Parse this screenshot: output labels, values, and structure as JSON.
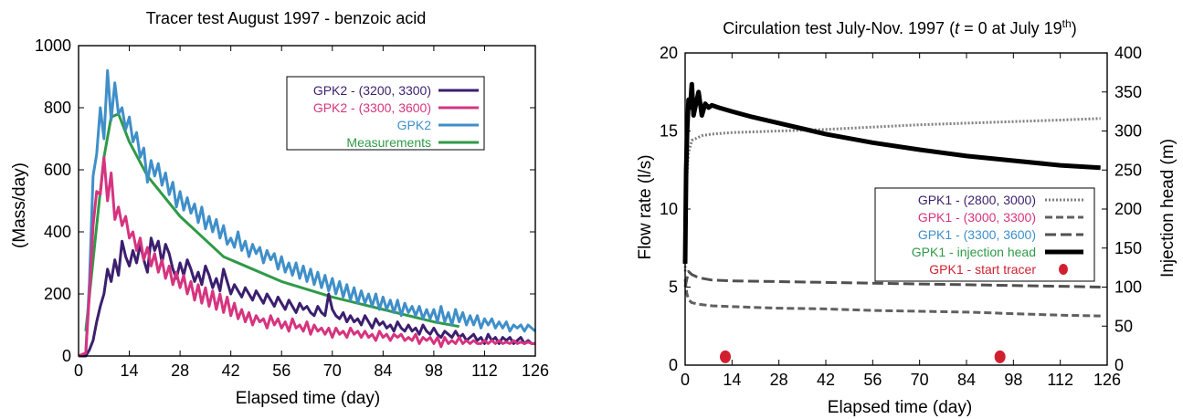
{
  "chart_data": [
    {
      "type": "line",
      "title": "Tracer test August 1997 - benzoic acid",
      "xlabel": "Elapsed time (day)",
      "ylabel": "(Mass/day)",
      "xlim": [
        0,
        126
      ],
      "ylim": [
        0,
        1000
      ],
      "xticks": [
        0,
        14,
        28,
        42,
        56,
        70,
        84,
        98,
        112,
        126
      ],
      "yticks": [
        0,
        200,
        400,
        600,
        800,
        1000
      ],
      "legend_position": "top-right",
      "series": [
        {
          "name": "GPK2 - (3200, 3300)",
          "color": "#3b1f6e",
          "name_color": "#3b1f6e",
          "x": [
            0,
            2,
            3,
            4,
            5,
            6,
            7,
            8,
            9,
            10,
            11,
            12,
            13,
            14,
            15,
            16,
            17,
            18,
            19,
            20,
            21,
            22,
            23,
            24,
            25,
            26,
            27,
            28,
            29,
            30,
            31,
            32,
            33,
            34,
            35,
            36,
            37,
            38,
            39,
            40,
            41,
            42,
            43,
            44,
            45,
            46,
            47,
            48,
            49,
            50,
            51,
            52,
            53,
            54,
            55,
            56,
            57,
            58,
            59,
            60,
            61,
            62,
            63,
            64,
            65,
            66,
            67,
            68,
            69,
            70,
            71,
            72,
            73,
            74,
            75,
            76,
            77,
            78,
            79,
            80,
            81,
            82,
            83,
            84,
            85,
            86,
            87,
            88,
            89,
            90,
            91,
            92,
            93,
            94,
            95,
            96,
            97,
            98,
            99,
            100,
            101,
            102,
            103,
            104,
            105,
            106,
            107,
            108,
            109,
            110,
            111,
            112,
            113,
            114,
            115,
            116,
            117,
            118,
            119,
            120,
            121,
            122,
            123,
            124,
            125,
            126
          ],
          "values": [
            0,
            0,
            20,
            50,
            110,
            160,
            200,
            280,
            240,
            310,
            260,
            370,
            320,
            290,
            340,
            300,
            360,
            310,
            270,
            380,
            340,
            370,
            300,
            360,
            330,
            280,
            250,
            300,
            260,
            310,
            280,
            240,
            270,
            230,
            290,
            260,
            220,
            250,
            210,
            280,
            240,
            200,
            230,
            210,
            190,
            220,
            200,
            180,
            210,
            190,
            170,
            200,
            180,
            160,
            190,
            170,
            150,
            180,
            160,
            140,
            170,
            150,
            160,
            140,
            130,
            160,
            140,
            130,
            200,
            150,
            130,
            120,
            140,
            110,
            130,
            110,
            120,
            100,
            130,
            110,
            90,
            120,
            100,
            110,
            90,
            100,
            80,
            110,
            90,
            80,
            100,
            80,
            90,
            70,
            100,
            80,
            70,
            90,
            70,
            60,
            80,
            70,
            60,
            80,
            60,
            70,
            50,
            60,
            70,
            50,
            60,
            40,
            70,
            50,
            60,
            40,
            60,
            50,
            60,
            40,
            50,
            60,
            40,
            50,
            40,
            40
          ]
        },
        {
          "name": "GPK2 - (3300, 3600)",
          "color": "#d6347f",
          "name_color": "#d6347f",
          "x": [
            0,
            2,
            3,
            4,
            5,
            6,
            7,
            8,
            9,
            10,
            11,
            12,
            13,
            14,
            15,
            16,
            17,
            18,
            19,
            20,
            21,
            22,
            23,
            24,
            25,
            26,
            27,
            28,
            29,
            30,
            31,
            32,
            33,
            34,
            35,
            36,
            37,
            38,
            39,
            40,
            41,
            42,
            43,
            44,
            45,
            46,
            47,
            48,
            49,
            50,
            51,
            52,
            53,
            54,
            55,
            56,
            57,
            58,
            59,
            60,
            61,
            62,
            63,
            64,
            65,
            66,
            67,
            68,
            69,
            70,
            71,
            72,
            73,
            74,
            75,
            76,
            77,
            78,
            79,
            80,
            81,
            82,
            83,
            84,
            85,
            86,
            87,
            88,
            89,
            90,
            91,
            92,
            93,
            94,
            95,
            96,
            97,
            98,
            99,
            100,
            101,
            102,
            103,
            104,
            105,
            106,
            107,
            108,
            109,
            110,
            111,
            112,
            113,
            114,
            115,
            116,
            117,
            118,
            119,
            120,
            121,
            122,
            123,
            124,
            125,
            126
          ],
          "values": [
            0,
            10,
            200,
            420,
            530,
            520,
            640,
            500,
            590,
            440,
            480,
            420,
            450,
            380,
            400,
            340,
            380,
            310,
            350,
            290,
            330,
            270,
            310,
            250,
            290,
            230,
            270,
            220,
            260,
            200,
            240,
            180,
            230,
            170,
            220,
            160,
            210,
            150,
            200,
            140,
            190,
            130,
            170,
            120,
            150,
            110,
            140,
            100,
            130,
            110,
            120,
            90,
            130,
            100,
            120,
            90,
            110,
            80,
            120,
            90,
            100,
            80,
            110,
            70,
            100,
            80,
            90,
            70,
            90,
            60,
            90,
            70,
            80,
            60,
            90,
            70,
            80,
            60,
            80,
            60,
            70,
            50,
            80,
            60,
            70,
            50,
            70,
            60,
            70,
            50,
            60,
            50,
            70,
            40,
            60,
            50,
            60,
            40,
            60,
            30,
            60,
            40,
            50,
            40,
            60,
            40,
            50,
            40,
            50,
            40,
            40,
            50,
            40,
            50,
            40,
            50,
            40,
            45,
            40,
            50,
            40,
            45,
            40,
            45,
            40,
            40
          ]
        },
        {
          "name": "GPK2",
          "color": "#3f8fc9",
          "name_color": "#3f8fc9",
          "x": [
            0,
            2,
            3,
            4,
            5,
            6,
            7,
            8,
            9,
            10,
            11,
            12,
            13,
            14,
            15,
            16,
            17,
            18,
            19,
            20,
            21,
            22,
            23,
            24,
            25,
            26,
            27,
            28,
            29,
            30,
            31,
            32,
            33,
            34,
            35,
            36,
            37,
            38,
            39,
            40,
            41,
            42,
            43,
            44,
            45,
            46,
            47,
            48,
            49,
            50,
            51,
            52,
            53,
            54,
            55,
            56,
            57,
            58,
            59,
            60,
            61,
            62,
            63,
            64,
            65,
            66,
            67,
            68,
            69,
            70,
            71,
            72,
            73,
            74,
            75,
            76,
            77,
            78,
            79,
            80,
            81,
            82,
            83,
            84,
            85,
            86,
            87,
            88,
            89,
            90,
            91,
            92,
            93,
            94,
            95,
            96,
            97,
            98,
            99,
            100,
            101,
            102,
            103,
            104,
            105,
            106,
            107,
            108,
            109,
            110,
            111,
            112,
            113,
            114,
            115,
            116,
            117,
            118,
            119,
            120,
            121,
            122,
            123,
            124,
            125,
            126
          ],
          "values": [
            0,
            10,
            240,
            580,
            650,
            800,
            700,
            920,
            760,
            880,
            780,
            800,
            730,
            770,
            690,
            720,
            640,
            670,
            560,
            630,
            580,
            620,
            550,
            590,
            520,
            560,
            480,
            530,
            470,
            510,
            460,
            490,
            430,
            480,
            410,
            450,
            400,
            440,
            380,
            420,
            360,
            380,
            350,
            400,
            340,
            370,
            320,
            360,
            330,
            350,
            300,
            340,
            310,
            330,
            280,
            320,
            270,
            300,
            260,
            300,
            250,
            290,
            240,
            280,
            230,
            270,
            220,
            260,
            210,
            250,
            200,
            240,
            190,
            230,
            180,
            220,
            170,
            210,
            170,
            200,
            160,
            200,
            150,
            190,
            150,
            180,
            140,
            180,
            130,
            170,
            140,
            160,
            130,
            160,
            120,
            150,
            120,
            150,
            110,
            160,
            110,
            140,
            100,
            150,
            110,
            140,
            100,
            130,
            100,
            130,
            90,
            120,
            100,
            120,
            90,
            110,
            90,
            110,
            80,
            100,
            90,
            100,
            80,
            100,
            90,
            80
          ]
        },
        {
          "name": "Measurements",
          "color": "#2f9a47",
          "name_color": "#2f9a47",
          "x": [
            2,
            5,
            7,
            9,
            11,
            14,
            19,
            28,
            40,
            56,
            70,
            84,
            98,
            105
          ],
          "values": [
            80,
            420,
            640,
            770,
            780,
            690,
            580,
            450,
            320,
            240,
            190,
            150,
            110,
            95
          ]
        }
      ]
    },
    {
      "type": "line",
      "title": "Circulation test July-Nov. 1997 (",
      "title_var": "t",
      "title_mid": " = 0 at July 19",
      "title_sup": "th",
      "title_end": ")",
      "xlabel": "Elapsed time (day)",
      "ylabel": "Flow rate (l/s)",
      "y2label": "Injection head (m)",
      "xlim": [
        0,
        126
      ],
      "ylim": [
        0,
        20
      ],
      "y2lim": [
        0,
        400
      ],
      "xticks": [
        0,
        14,
        28,
        42,
        56,
        70,
        84,
        98,
        112,
        126
      ],
      "yticks": [
        0,
        5,
        10,
        15,
        20
      ],
      "y2ticks": [
        0,
        50,
        100,
        150,
        200,
        250,
        300,
        350,
        400
      ],
      "legend_position": "bottom-right",
      "series": [
        {
          "name": "GPK1 - (2800, 3000)",
          "name_color": "#3b1f6e",
          "color": "#808080",
          "style": "dotted",
          "axis": "left",
          "x": [
            0,
            0.5,
            1,
            2,
            3,
            5,
            8,
            14,
            28,
            42,
            56,
            70,
            84,
            98,
            112,
            124
          ],
          "values": [
            6,
            12,
            13.6,
            14.4,
            14.5,
            14.7,
            14.8,
            14.9,
            15.0,
            15.1,
            15.25,
            15.4,
            15.5,
            15.6,
            15.7,
            15.8
          ]
        },
        {
          "name": "GPK1 - (3000, 3300)",
          "name_color": "#d6347f",
          "color": "#606060",
          "style": "dashed",
          "axis": "left",
          "x": [
            0,
            0.5,
            1,
            2,
            4,
            8,
            14,
            28,
            42,
            56,
            70,
            84,
            98,
            112,
            124
          ],
          "values": [
            5.5,
            4.6,
            4.2,
            4.0,
            3.9,
            3.8,
            3.75,
            3.65,
            3.6,
            3.5,
            3.45,
            3.4,
            3.3,
            3.2,
            3.15
          ]
        },
        {
          "name": "GPK1 - (3300, 3600)",
          "name_color": "#3f8fc9",
          "color": "#505050",
          "style": "longdash",
          "axis": "left",
          "x": [
            0,
            0.5,
            1,
            2,
            4,
            8,
            14,
            28,
            42,
            56,
            70,
            84,
            98,
            112,
            124
          ],
          "values": [
            5.0,
            5.5,
            6.0,
            5.8,
            5.6,
            5.45,
            5.4,
            5.35,
            5.3,
            5.25,
            5.2,
            5.15,
            5.1,
            5.05,
            5.0
          ]
        },
        {
          "name": "GPK1 - injection head",
          "name_color": "#2f9a47",
          "color": "#000000",
          "style": "solid",
          "axis": "right",
          "x": [
            0,
            0.3,
            0.6,
            1,
            1.5,
            2,
            2.5,
            3,
            4,
            5,
            6,
            7,
            8,
            10,
            14,
            20,
            28,
            42,
            56,
            70,
            84,
            98,
            112,
            124
          ],
          "values": [
            130,
            250,
            300,
            340,
            330,
            360,
            320,
            330,
            350,
            320,
            335,
            330,
            333,
            330,
            325,
            318,
            310,
            296,
            285,
            276,
            268,
            262,
            256,
            253
          ]
        },
        {
          "name": "GPK1 - start tracer",
          "name_color": "#d21f2f",
          "color": "#d21f2f",
          "style": "marker",
          "axis": "left",
          "x": [
            12,
            94
          ],
          "values": [
            0.3,
            0.3
          ]
        }
      ]
    }
  ]
}
